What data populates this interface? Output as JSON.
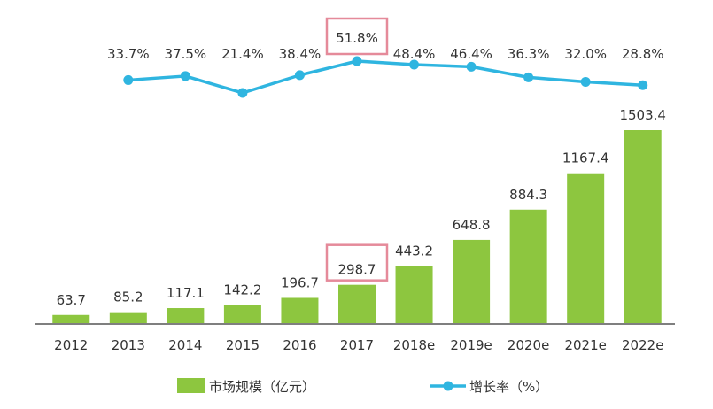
{
  "chart_data": {
    "type": "bar+line",
    "categories": [
      "2012",
      "2013",
      "2014",
      "2015",
      "2016",
      "2017",
      "2018e",
      "2019e",
      "2020e",
      "2021e",
      "2022e"
    ],
    "series": [
      {
        "name": "市场规模（亿元）",
        "type": "bar",
        "values": [
          63.7,
          85.2,
          117.1,
          142.2,
          196.7,
          298.7,
          443.2,
          648.8,
          884.3,
          1167.4,
          1503.4
        ],
        "labels": [
          "63.7",
          "85.2",
          "117.1",
          "142.2",
          "196.7",
          "298.7",
          "443.2",
          "648.8",
          "884.3",
          "1167.4",
          "1503.4"
        ]
      },
      {
        "name": "增长率（%）",
        "type": "line",
        "values": [
          33.7,
          37.5,
          21.4,
          38.4,
          51.8,
          48.4,
          46.4,
          36.3,
          32.0,
          28.8
        ],
        "x": [
          "2013",
          "2014",
          "2015",
          "2016",
          "2017",
          "2018e",
          "2019e",
          "2020e",
          "2021e",
          "2022e"
        ],
        "labels": [
          "33.7%",
          "37.5%",
          "21.4%",
          "38.4%",
          "51.8%",
          "48.4%",
          "46.4%",
          "36.3%",
          "32.0%",
          "28.8%"
        ]
      }
    ],
    "highlighted": [
      "2017"
    ],
    "colors": {
      "bar": "#8DC63F",
      "line": "#2FB5E0",
      "highlight_box": "#E58A9A",
      "axis": "#333333"
    },
    "legend_placement": "bottom",
    "grid": false
  }
}
